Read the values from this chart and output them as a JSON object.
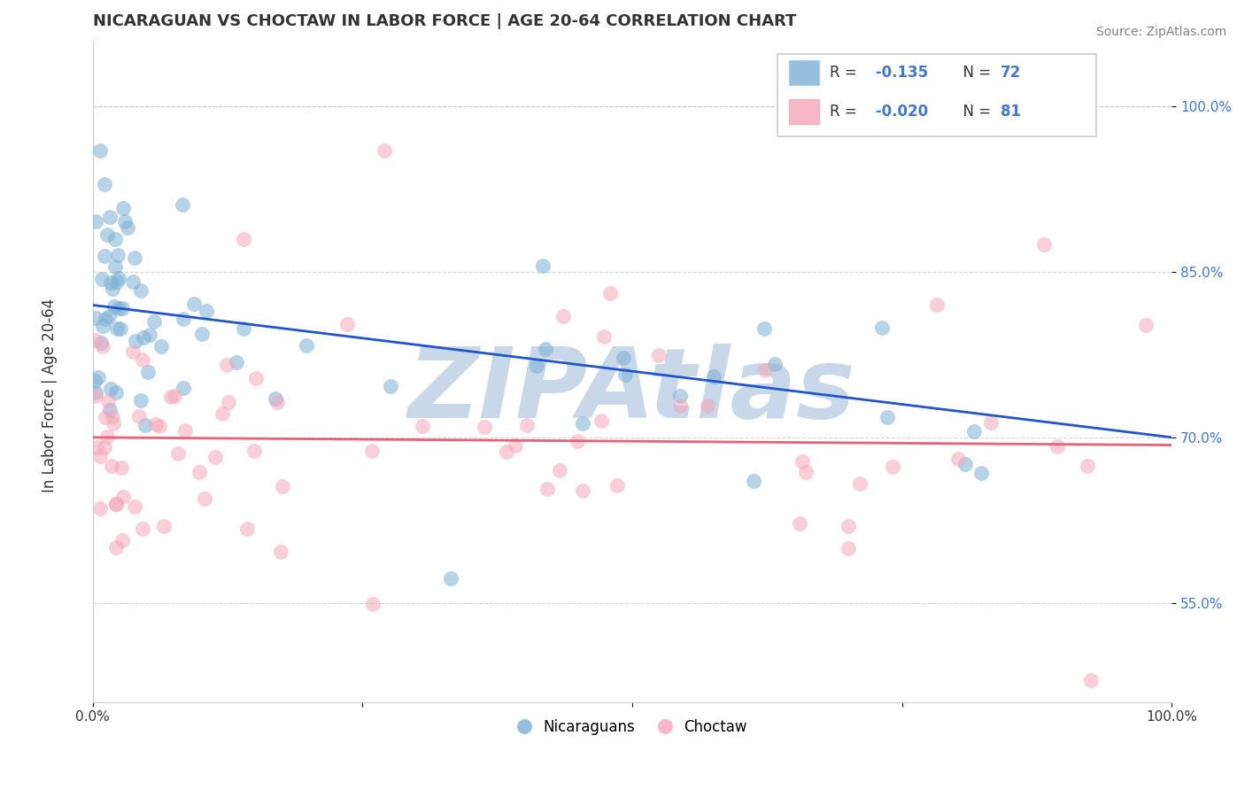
{
  "title": "NICARAGUAN VS CHOCTAW IN LABOR FORCE | AGE 20-64 CORRELATION CHART",
  "source": "Source: ZipAtlas.com",
  "ylabel": "In Labor Force | Age 20-64",
  "xlim": [
    0.0,
    1.0
  ],
  "ylim": [
    0.46,
    1.06
  ],
  "yticks": [
    0.55,
    0.7,
    0.85,
    1.0
  ],
  "ytick_labels": [
    "55.0%",
    "70.0%",
    "85.0%",
    "100.0%"
  ],
  "blue_color": "#7BAFD4",
  "pink_color": "#F4A7B9",
  "trend_blue": "#2255CC",
  "trend_pink": "#E8607A",
  "watermark": "ZIPAtlas",
  "watermark_color": "#C8D8E8",
  "background": "#FFFFFF",
  "blue_trend_x": [
    0.0,
    1.0
  ],
  "blue_trend_y": [
    0.82,
    0.7
  ],
  "pink_trend_x": [
    0.0,
    1.0
  ],
  "pink_trend_y": [
    0.7,
    0.693
  ],
  "dashed_line_y": 1.0,
  "grid_color": "#CCCCCC",
  "ytick_color": "#4477CC",
  "legend_blue_r": "R =",
  "legend_blue_r_val": "-0.135",
  "legend_blue_n": "N =",
  "legend_blue_n_val": "72",
  "legend_pink_r": "R =",
  "legend_pink_r_val": "-0.020",
  "legend_pink_n": "N =",
  "legend_pink_n_val": "81"
}
